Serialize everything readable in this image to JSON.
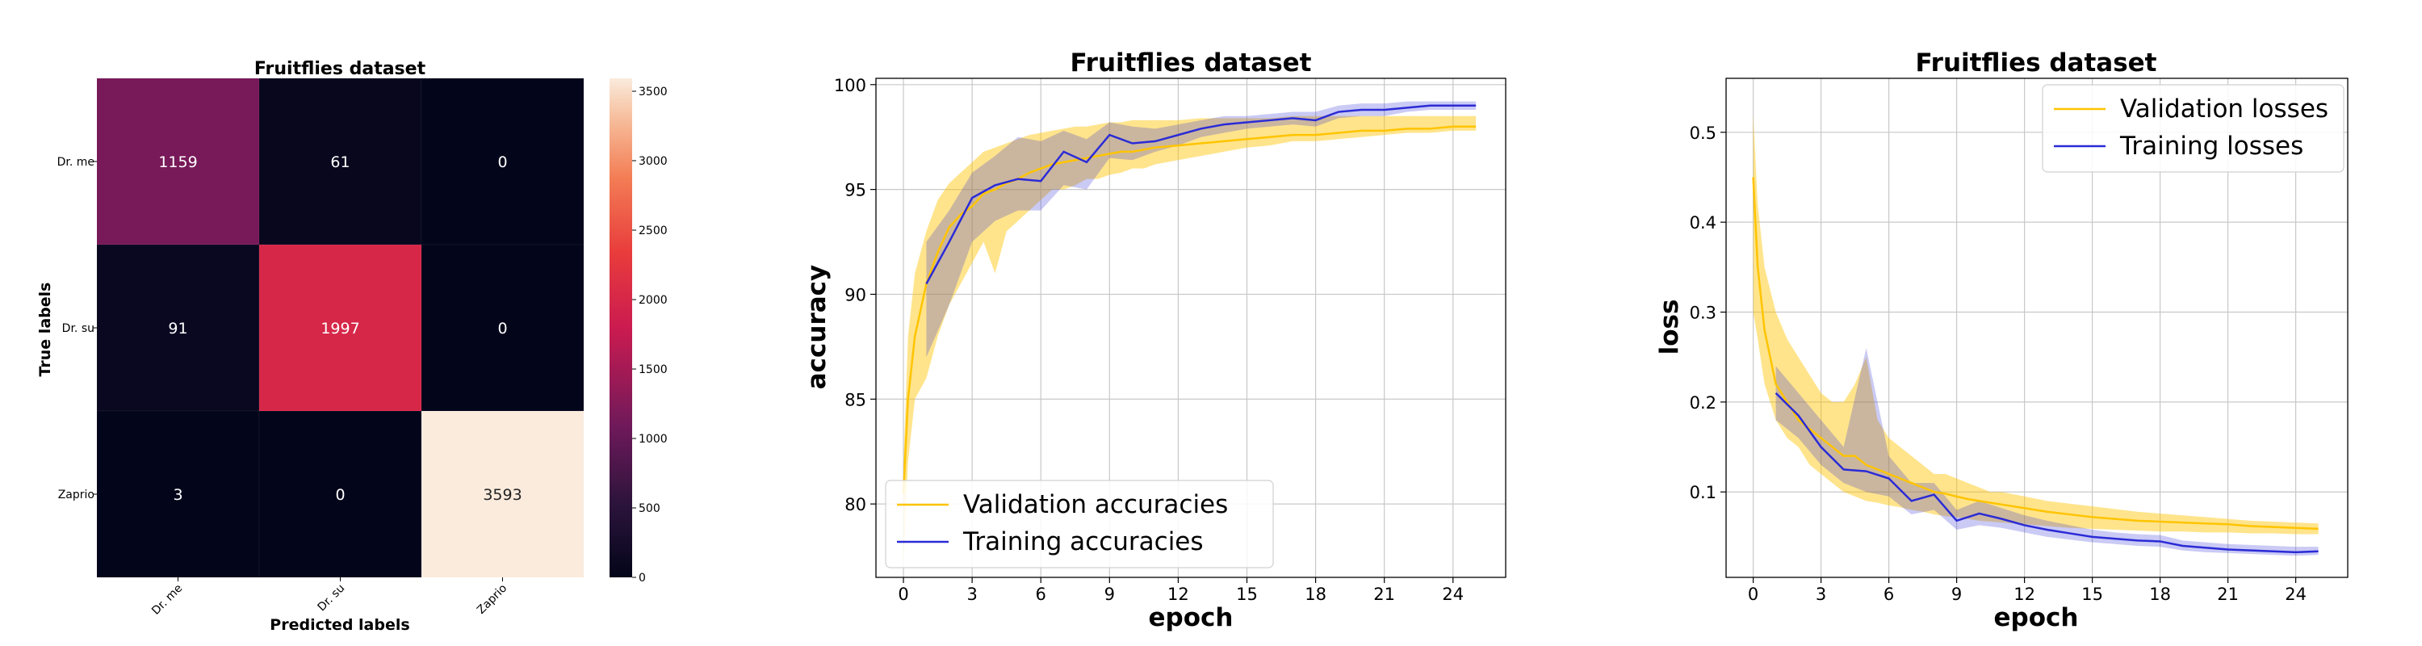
{
  "chart_data": [
    {
      "type": "heatmap",
      "title": "Fruitflies dataset",
      "xlabel": "Predicted labels",
      "ylabel": "True labels",
      "x_categories": [
        "Dr. me",
        "Dr. su",
        "Zaprio"
      ],
      "y_categories": [
        "Dr. me",
        "Dr. su",
        "Zaprio"
      ],
      "matrix": [
        [
          1159,
          61,
          0
        ],
        [
          91,
          1997,
          0
        ],
        [
          3,
          0,
          3593
        ]
      ],
      "colorbar": {
        "min": 0,
        "max": 3593,
        "ticks": [
          0,
          500,
          1000,
          1500,
          2000,
          2500,
          3000,
          3500
        ]
      }
    },
    {
      "type": "line",
      "title": "Fruitflies dataset",
      "xlabel": "epoch",
      "ylabel": "accuracy",
      "xlim": [
        -1.2,
        26.3
      ],
      "ylim": [
        76.5,
        100.3
      ],
      "xticks": [
        0,
        3,
        6,
        9,
        12,
        15,
        18,
        21,
        24
      ],
      "yticks": [
        80,
        85,
        90,
        95,
        100
      ],
      "grid": true,
      "legend": "bottom-left",
      "series": [
        {
          "name": "Validation accuracies",
          "color": "#ffc400",
          "x": [
            0,
            0.2,
            0.5,
            1,
            1.5,
            2,
            2.5,
            3,
            3.5,
            4,
            4.5,
            5,
            5.5,
            6,
            6.5,
            7,
            7.5,
            8,
            8.5,
            9,
            9.5,
            10,
            10.5,
            11,
            12,
            13,
            14,
            15,
            16,
            17,
            18,
            19,
            20,
            21,
            22,
            23,
            24,
            25
          ],
          "values": [
            80.5,
            85,
            88,
            90.5,
            92,
            93.2,
            93.8,
            94.2,
            94.8,
            95,
            95.3,
            95.5,
            95.8,
            96,
            96.2,
            96.3,
            96.4,
            96.5,
            96.6,
            96.7,
            96.8,
            96.8,
            96.9,
            97,
            97.1,
            97.2,
            97.3,
            97.4,
            97.5,
            97.6,
            97.6,
            97.7,
            97.8,
            97.8,
            97.9,
            97.9,
            98,
            98
          ],
          "band_low": [
            77,
            82,
            85,
            86,
            88,
            89.5,
            90.5,
            91.5,
            92.5,
            91,
            93,
            93.5,
            94,
            94.5,
            95,
            95,
            95.2,
            95.5,
            95.5,
            95.7,
            95.8,
            96,
            96,
            96.2,
            96.4,
            96.6,
            96.8,
            97,
            97.1,
            97.3,
            97.3,
            97.4,
            97.5,
            97.6,
            97.7,
            97.7,
            97.8,
            97.8
          ],
          "band_high": [
            82,
            88,
            91,
            93,
            94.5,
            95.3,
            95.8,
            96.3,
            96.8,
            97,
            97.2,
            97.4,
            97.6,
            97.7,
            97.8,
            97.9,
            98,
            98,
            98.1,
            98.2,
            98.2,
            98.3,
            98.3,
            98.3,
            98.3,
            98.4,
            98.4,
            98.4,
            98.4,
            98.5,
            98.5,
            98.5,
            98.5,
            98.5,
            98.5,
            98.5,
            98.5,
            98.5
          ]
        },
        {
          "name": "Training accuracies",
          "color": "#2b2bd6",
          "x": [
            1,
            2,
            3,
            4,
            5,
            6,
            7,
            8,
            9,
            10,
            11,
            12,
            13,
            14,
            15,
            16,
            17,
            18,
            19,
            20,
            21,
            22,
            23,
            24,
            25
          ],
          "values": [
            90.5,
            92.5,
            94.6,
            95.2,
            95.5,
            95.4,
            96.8,
            96.3,
            97.6,
            97.2,
            97.3,
            97.6,
            97.9,
            98.1,
            98.2,
            98.3,
            98.4,
            98.3,
            98.7,
            98.8,
            98.8,
            98.9,
            99,
            99,
            99
          ],
          "band_low": [
            87,
            89.5,
            92.5,
            93.5,
            94,
            94,
            95.2,
            95,
            96.5,
            96.4,
            96.8,
            97.1,
            97.5,
            97.7,
            97.9,
            98,
            98.1,
            98,
            98.4,
            98.5,
            98.5,
            98.7,
            98.8,
            98.8,
            98.8
          ],
          "band_high": [
            92.5,
            94,
            95.8,
            96.6,
            97.5,
            97.3,
            97.8,
            97.4,
            98.2,
            98,
            97.9,
            98.1,
            98.3,
            98.5,
            98.5,
            98.6,
            98.7,
            98.7,
            99,
            99.1,
            99.1,
            99.2,
            99.2,
            99.2,
            99.2
          ]
        }
      ]
    },
    {
      "type": "line",
      "title": "Fruitflies dataset",
      "xlabel": "epoch",
      "ylabel": "loss",
      "xlim": [
        -1.2,
        26.3
      ],
      "ylim": [
        0.005,
        0.56
      ],
      "xticks": [
        0,
        3,
        6,
        9,
        12,
        15,
        18,
        21,
        24
      ],
      "yticks": [
        0.1,
        0.2,
        0.3,
        0.4,
        0.5
      ],
      "grid": true,
      "legend": "top-right",
      "series": [
        {
          "name": "Validation losses",
          "color": "#ffc400",
          "x": [
            0,
            0.2,
            0.5,
            1,
            1.5,
            2,
            2.5,
            3,
            3.5,
            4,
            4.5,
            5,
            5.5,
            6,
            6.5,
            7,
            7.5,
            8,
            8.5,
            9,
            9.5,
            10,
            10.5,
            11,
            12,
            13,
            14,
            15,
            16,
            17,
            18,
            19,
            20,
            21,
            22,
            23,
            24,
            25
          ],
          "values": [
            0.45,
            0.35,
            0.28,
            0.22,
            0.2,
            0.18,
            0.17,
            0.16,
            0.15,
            0.14,
            0.14,
            0.13,
            0.125,
            0.12,
            0.115,
            0.11,
            0.105,
            0.1,
            0.098,
            0.095,
            0.092,
            0.09,
            0.088,
            0.086,
            0.082,
            0.078,
            0.075,
            0.072,
            0.07,
            0.068,
            0.067,
            0.066,
            0.065,
            0.064,
            0.062,
            0.061,
            0.06,
            0.059
          ],
          "band_low": [
            0.3,
            0.27,
            0.22,
            0.18,
            0.16,
            0.15,
            0.13,
            0.12,
            0.11,
            0.1,
            0.095,
            0.09,
            0.088,
            0.085,
            0.083,
            0.08,
            0.078,
            0.075,
            0.073,
            0.072,
            0.07,
            0.068,
            0.067,
            0.066,
            0.064,
            0.062,
            0.06,
            0.059,
            0.058,
            0.057,
            0.056,
            0.056,
            0.055,
            0.055,
            0.054,
            0.054,
            0.053,
            0.053
          ],
          "band_high": [
            0.52,
            0.42,
            0.35,
            0.3,
            0.27,
            0.25,
            0.23,
            0.21,
            0.2,
            0.2,
            0.22,
            0.25,
            0.18,
            0.16,
            0.15,
            0.14,
            0.13,
            0.12,
            0.12,
            0.115,
            0.11,
            0.105,
            0.1,
            0.1,
            0.095,
            0.09,
            0.087,
            0.084,
            0.081,
            0.078,
            0.076,
            0.074,
            0.072,
            0.07,
            0.068,
            0.067,
            0.066,
            0.065
          ]
        },
        {
          "name": "Training losses",
          "color": "#2b2bd6",
          "x": [
            1,
            2,
            3,
            4,
            5,
            6,
            7,
            8,
            9,
            10,
            11,
            12,
            13,
            14,
            15,
            16,
            17,
            18,
            19,
            20,
            21,
            22,
            23,
            24,
            25
          ],
          "values": [
            0.21,
            0.185,
            0.15,
            0.125,
            0.123,
            0.115,
            0.09,
            0.097,
            0.068,
            0.076,
            0.07,
            0.063,
            0.058,
            0.054,
            0.05,
            0.048,
            0.046,
            0.045,
            0.04,
            0.038,
            0.036,
            0.035,
            0.034,
            0.033,
            0.034
          ],
          "band_low": [
            0.18,
            0.16,
            0.13,
            0.11,
            0.1,
            0.095,
            0.075,
            0.08,
            0.058,
            0.063,
            0.06,
            0.055,
            0.05,
            0.047,
            0.044,
            0.042,
            0.04,
            0.039,
            0.035,
            0.033,
            0.032,
            0.031,
            0.03,
            0.029,
            0.03
          ],
          "band_high": [
            0.24,
            0.21,
            0.18,
            0.15,
            0.26,
            0.14,
            0.11,
            0.11,
            0.08,
            0.09,
            0.082,
            0.074,
            0.068,
            0.063,
            0.058,
            0.055,
            0.053,
            0.052,
            0.046,
            0.044,
            0.042,
            0.041,
            0.04,
            0.039,
            0.039
          ]
        }
      ]
    }
  ]
}
